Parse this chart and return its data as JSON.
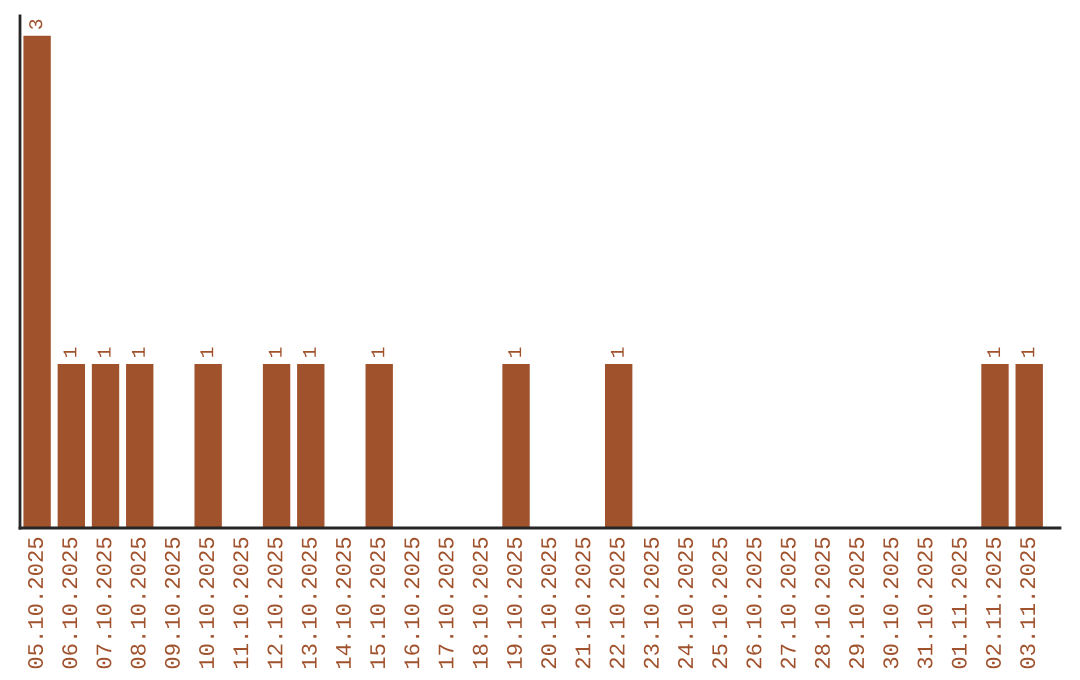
{
  "chart_data": {
    "type": "bar",
    "color": "#a0522d",
    "categories": [
      "05.10.2025",
      "06.10.2025",
      "07.10.2025",
      "08.10.2025",
      "09.10.2025",
      "10.10.2025",
      "11.10.2025",
      "12.10.2025",
      "13.10.2025",
      "14.10.2025",
      "15.10.2025",
      "16.10.2025",
      "17.10.2025",
      "18.10.2025",
      "19.10.2025",
      "20.10.2025",
      "21.10.2025",
      "22.10.2025",
      "23.10.2025",
      "24.10.2025",
      "25.10.2025",
      "26.10.2025",
      "27.10.2025",
      "28.10.2025",
      "29.10.2025",
      "30.10.2025",
      "31.10.2025",
      "01.11.2025",
      "02.11.2025",
      "03.11.2025"
    ],
    "values": [
      3,
      1,
      1,
      1,
      0,
      1,
      0,
      1,
      1,
      0,
      1,
      0,
      0,
      0,
      1,
      0,
      0,
      1,
      0,
      0,
      0,
      0,
      0,
      0,
      0,
      0,
      0,
      0,
      1,
      1
    ],
    "value_labels": [
      "3",
      "1",
      "1",
      "1",
      null,
      "1",
      null,
      "1",
      "1",
      null,
      "1",
      null,
      null,
      null,
      "1",
      null,
      null,
      "1",
      null,
      null,
      null,
      null,
      null,
      null,
      null,
      null,
      null,
      null,
      "1",
      "1"
    ],
    "grid": false,
    "legend": false
  }
}
